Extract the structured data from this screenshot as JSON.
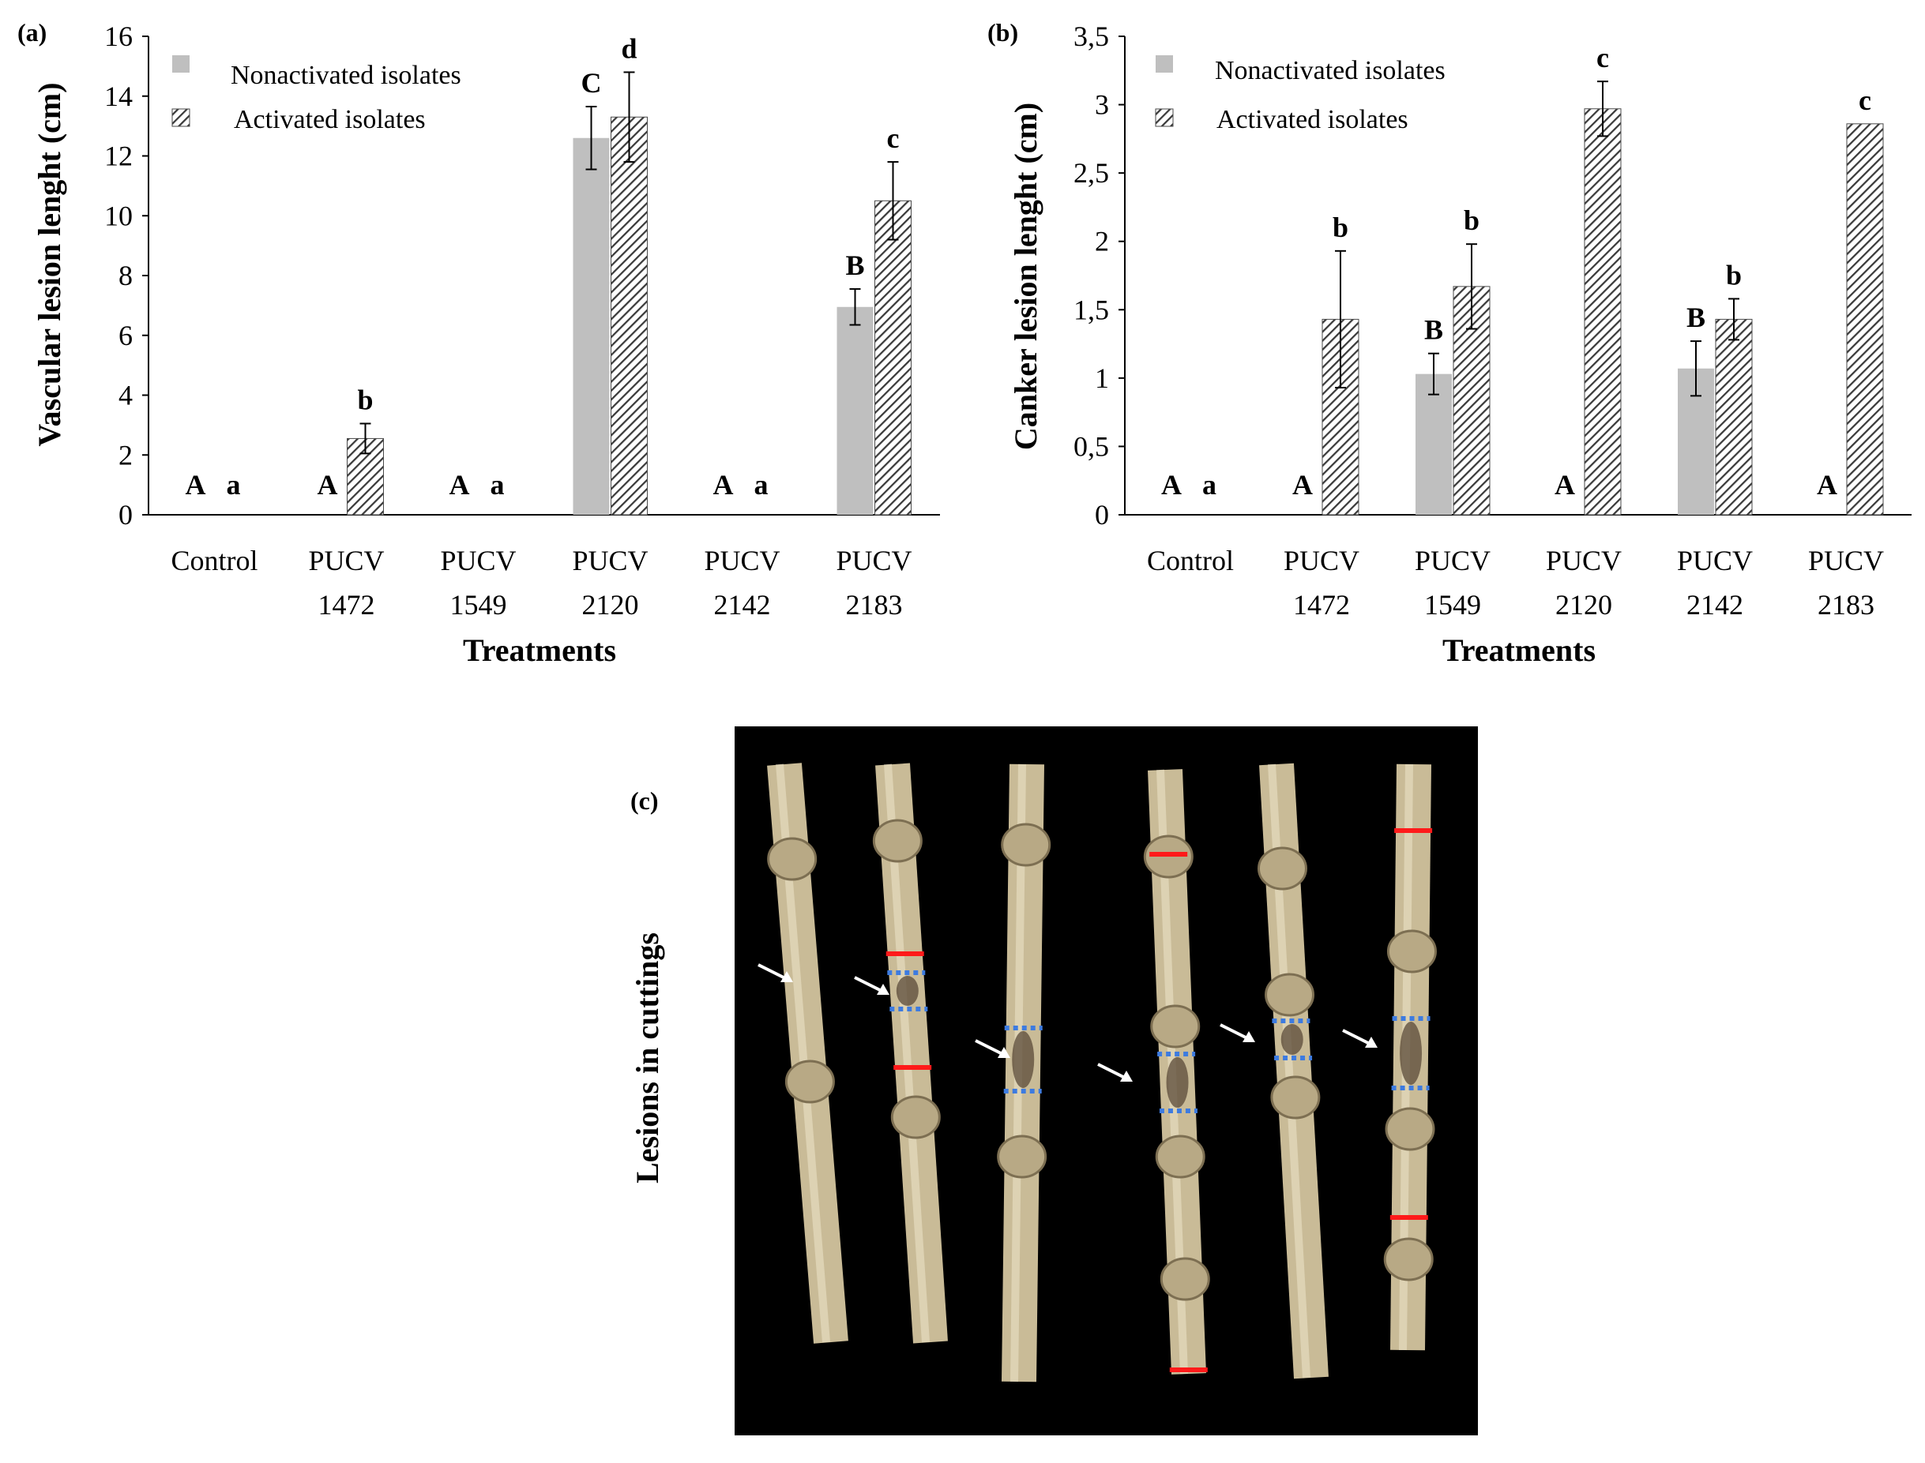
{
  "chart_data": [
    {
      "panel_label": "(a)",
      "type": "bar",
      "xlabel": "Treatments",
      "ylabel": "Vascular lesion lenght (cm)",
      "ylim": [
        0,
        16
      ],
      "yticks": [
        "0",
        "2",
        "4",
        "6",
        "8",
        "10",
        "12",
        "14",
        "16"
      ],
      "categories": [
        {
          "line1": "Control",
          "line2": ""
        },
        {
          "line1": "PUCV",
          "line2": "1472"
        },
        {
          "line1": "PUCV",
          "line2": "1549"
        },
        {
          "line1": "PUCV",
          "line2": "2120"
        },
        {
          "line1": "PUCV",
          "line2": "2142"
        },
        {
          "line1": "PUCV",
          "line2": "2183"
        }
      ],
      "legend_position": "top-left",
      "series": [
        {
          "name": "Nonactivated isolates",
          "pattern": "solid-gray",
          "values": [
            0,
            0,
            0,
            12.6,
            0,
            6.95
          ],
          "errors": [
            0,
            0,
            0,
            1.05,
            0,
            0.6
          ],
          "letters": [
            "A",
            "A",
            "A",
            "C",
            "A",
            "B"
          ]
        },
        {
          "name": "Activated isolates",
          "pattern": "diagonal-hatch",
          "values": [
            0,
            2.55,
            0,
            13.3,
            0,
            10.5
          ],
          "errors": [
            0,
            0.5,
            0,
            1.5,
            0,
            1.3
          ],
          "letters": [
            "a",
            "b",
            "a",
            "d",
            "a",
            "c"
          ]
        }
      ]
    },
    {
      "panel_label": "(b)",
      "type": "bar",
      "xlabel": "Treatments",
      "ylabel": "Canker lesion lenght (cm)",
      "ylim": [
        0,
        3.5
      ],
      "yticks": [
        "0",
        "0,5",
        "1",
        "1,5",
        "2",
        "2,5",
        "3",
        "3,5"
      ],
      "categories": [
        {
          "line1": "Control",
          "line2": ""
        },
        {
          "line1": "PUCV",
          "line2": "1472"
        },
        {
          "line1": "PUCV",
          "line2": "1549"
        },
        {
          "line1": "PUCV",
          "line2": "2120"
        },
        {
          "line1": "PUCV",
          "line2": "2142"
        },
        {
          "line1": "PUCV",
          "line2": "2183"
        }
      ],
      "legend_position": "top-left",
      "series": [
        {
          "name": "Nonactivated isolates",
          "pattern": "solid-gray",
          "values": [
            0,
            0,
            1.03,
            0,
            1.07,
            0
          ],
          "errors": [
            0,
            0,
            0.15,
            0,
            0.2,
            0
          ],
          "letters": [
            "A",
            "A",
            "B",
            "A",
            "B",
            "A"
          ]
        },
        {
          "name": "Activated isolates",
          "pattern": "diagonal-hatch",
          "values": [
            0,
            1.43,
            1.67,
            2.97,
            1.43,
            2.86
          ],
          "errors": [
            0,
            0.5,
            0.31,
            0.2,
            0.15,
            0
          ],
          "letters": [
            "a",
            "b",
            "b",
            "c",
            "b",
            "c"
          ]
        }
      ]
    }
  ],
  "photo_panel": {
    "panel_label": "(c)",
    "side_label": "Lesions in cuttings",
    "colors": {
      "background": "#000000",
      "cutting": "#c9bb97",
      "lesion_mark": "#ff1a1a",
      "lesion_boundary": "#3d7be0",
      "arrow": "#ffffff"
    }
  }
}
